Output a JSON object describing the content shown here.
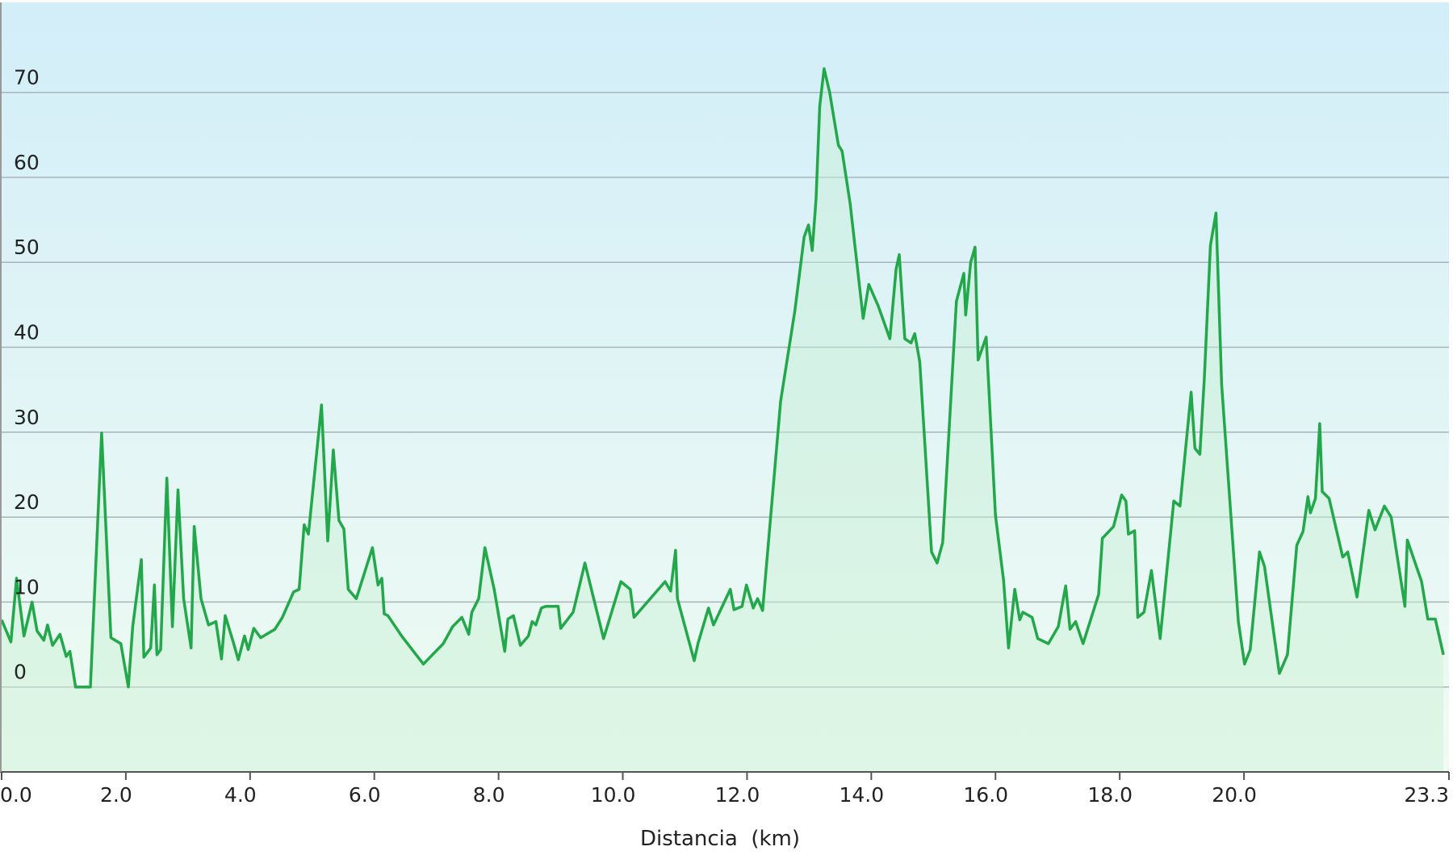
{
  "chart_data": {
    "type": "area",
    "title": "",
    "xlabel": "Distancia  (km)",
    "ylabel": "",
    "xlim": [
      0,
      23.3
    ],
    "ylim": [
      -10,
      80.6
    ],
    "grid": true,
    "x_ticks": [
      "0.0",
      "2.0",
      "4.0",
      "6.0",
      "8.0",
      "10.0",
      "12.0",
      "14.0",
      "16.0",
      "18.0",
      "20.0",
      "23.3"
    ],
    "y_ticks": [
      "0",
      "10",
      "20",
      "30",
      "40",
      "50",
      "60",
      "70"
    ],
    "colors": {
      "line": "#22a84a",
      "fill": "#c8f0d4",
      "bg_top": "#d2eef9",
      "bg_bottom": "#f0fbf2",
      "grid": "#a9b4b8"
    },
    "series": [
      {
        "x": [
          0,
          0.15,
          0.24,
          0.36,
          0.49,
          0.57,
          0.68,
          0.74,
          0.82,
          0.94,
          1.04,
          1.1,
          1.19,
          1.43,
          1.61,
          1.76,
          1.92,
          2.04,
          2.11,
          2.25,
          2.29,
          2.4,
          2.46,
          2.5,
          2.56,
          2.66,
          2.75,
          2.84,
          2.93,
          3.05,
          3.1,
          3.21,
          3.33,
          3.45,
          3.54,
          3.6,
          3.72,
          3.81,
          3.91,
          3.97,
          4.06,
          4.17,
          4.4,
          4.52,
          4.7,
          4.79,
          4.87,
          4.94,
          5.15,
          5.25,
          5.34,
          5.43,
          5.51,
          5.58,
          5.71,
          5.97,
          6.06,
          6.12,
          6.16,
          6.22,
          6.44,
          6.79,
          7.11,
          7.26,
          7.41,
          7.52,
          7.57,
          7.68,
          7.78,
          7.93,
          8.1,
          8.15,
          8.24,
          8.35,
          8.48,
          8.54,
          8.6,
          8.69,
          8.76,
          8.96,
          9.0,
          9.2,
          9.39,
          9.69,
          9.97,
          10.12,
          10.18,
          10.68,
          10.77,
          10.85,
          10.88,
          11.15,
          11.21,
          11.38,
          11.46,
          11.73,
          11.79,
          11.92,
          11.99,
          12.1,
          12.17,
          12.25,
          12.54,
          12.77,
          12.92,
          12.99,
          13.05,
          13.11,
          13.17,
          13.24,
          13.33,
          13.47,
          13.53,
          13.66,
          13.87,
          13.96,
          14.11,
          14.3,
          14.4,
          14.45,
          14.54,
          14.64,
          14.7,
          14.78,
          14.97,
          15.06,
          15.15,
          15.37,
          15.49,
          15.52,
          15.6,
          15.67,
          15.72,
          15.85,
          16.0,
          16.13,
          16.21,
          16.31,
          16.39,
          16.44,
          16.59,
          16.68,
          16.85,
          17.01,
          17.13,
          17.2,
          17.29,
          17.41,
          17.66,
          17.72,
          17.9,
          18.03,
          18.1,
          18.14,
          18.24,
          18.29,
          18.39,
          18.51,
          18.65,
          18.87,
          18.97,
          19.15,
          19.21,
          19.29,
          19.36,
          19.46,
          19.55,
          19.64,
          19.91,
          20.01,
          20.1,
          20.25,
          20.33,
          20.57,
          20.7,
          20.85,
          20.95,
          21.03,
          21.07,
          21.15,
          21.22,
          21.26,
          21.37,
          21.59,
          21.67,
          21.82,
          22.01,
          22.11,
          22.26,
          22.37,
          22.59,
          22.63,
          22.86,
          22.96,
          23.08,
          23.21
        ],
        "y": [
          7.9,
          5.3,
          12.8,
          6,
          10,
          6.6,
          5.5,
          7.3,
          4.9,
          6.2,
          3.6,
          4.2,
          0,
          0,
          29.9,
          5.8,
          5.1,
          0,
          7.1,
          15,
          3.5,
          4.6,
          12,
          3.8,
          4.4,
          24.6,
          7.1,
          23.2,
          10.4,
          4.6,
          18.9,
          10.4,
          7.3,
          7.7,
          3.3,
          8.4,
          5.5,
          3.2,
          6,
          4.4,
          6.9,
          5.8,
          6.8,
          8.2,
          11.2,
          11.5,
          19.1,
          18,
          33.2,
          17.2,
          27.9,
          19.6,
          18.6,
          11.5,
          10.4,
          16.4,
          12,
          12.8,
          8.6,
          8.4,
          6,
          2.7,
          5.1,
          7.1,
          8.2,
          6.2,
          8.8,
          10.4,
          16.4,
          11.5,
          4.2,
          8,
          8.4,
          4.9,
          6,
          7.7,
          7.3,
          9.3,
          9.5,
          9.5,
          6.9,
          8.8,
          14.6,
          5.7,
          12.4,
          11.5,
          8.2,
          12.4,
          11.3,
          16.1,
          10.4,
          3.1,
          5.1,
          9.3,
          7.3,
          11.5,
          9.1,
          9.5,
          12,
          9.3,
          10.4,
          9,
          33.6,
          44.3,
          53,
          54.4,
          51.4,
          57.4,
          68.4,
          72.8,
          70,
          63.8,
          63.1,
          56.9,
          43.4,
          47.4,
          44.9,
          41,
          49.2,
          50.9,
          41,
          40.5,
          41.6,
          38.3,
          15.9,
          14.6,
          17,
          45.4,
          48.7,
          43.8,
          50,
          51.8,
          38.5,
          41.2,
          20.2,
          12.6,
          4.6,
          11.5,
          7.9,
          8.8,
          8.2,
          5.7,
          5.1,
          7.1,
          11.9,
          6.8,
          7.7,
          5.1,
          10.9,
          17.5,
          18.9,
          22.6,
          21.9,
          18,
          18.4,
          8.2,
          8.8,
          13.7,
          5.7,
          21.9,
          21.3,
          34.7,
          28.1,
          27.4,
          36.1,
          52,
          55.8,
          35.6,
          7.7,
          2.7,
          4.4,
          15.9,
          14.2,
          1.6,
          3.8,
          16.7,
          18.3,
          22.4,
          20.5,
          22.2,
          31,
          23,
          22.2,
          15.3,
          15.9,
          10.6,
          20.8,
          18.5,
          21.3,
          20,
          9.5,
          17.3,
          12.4,
          8,
          8,
          3.8
        ]
      }
    ]
  }
}
